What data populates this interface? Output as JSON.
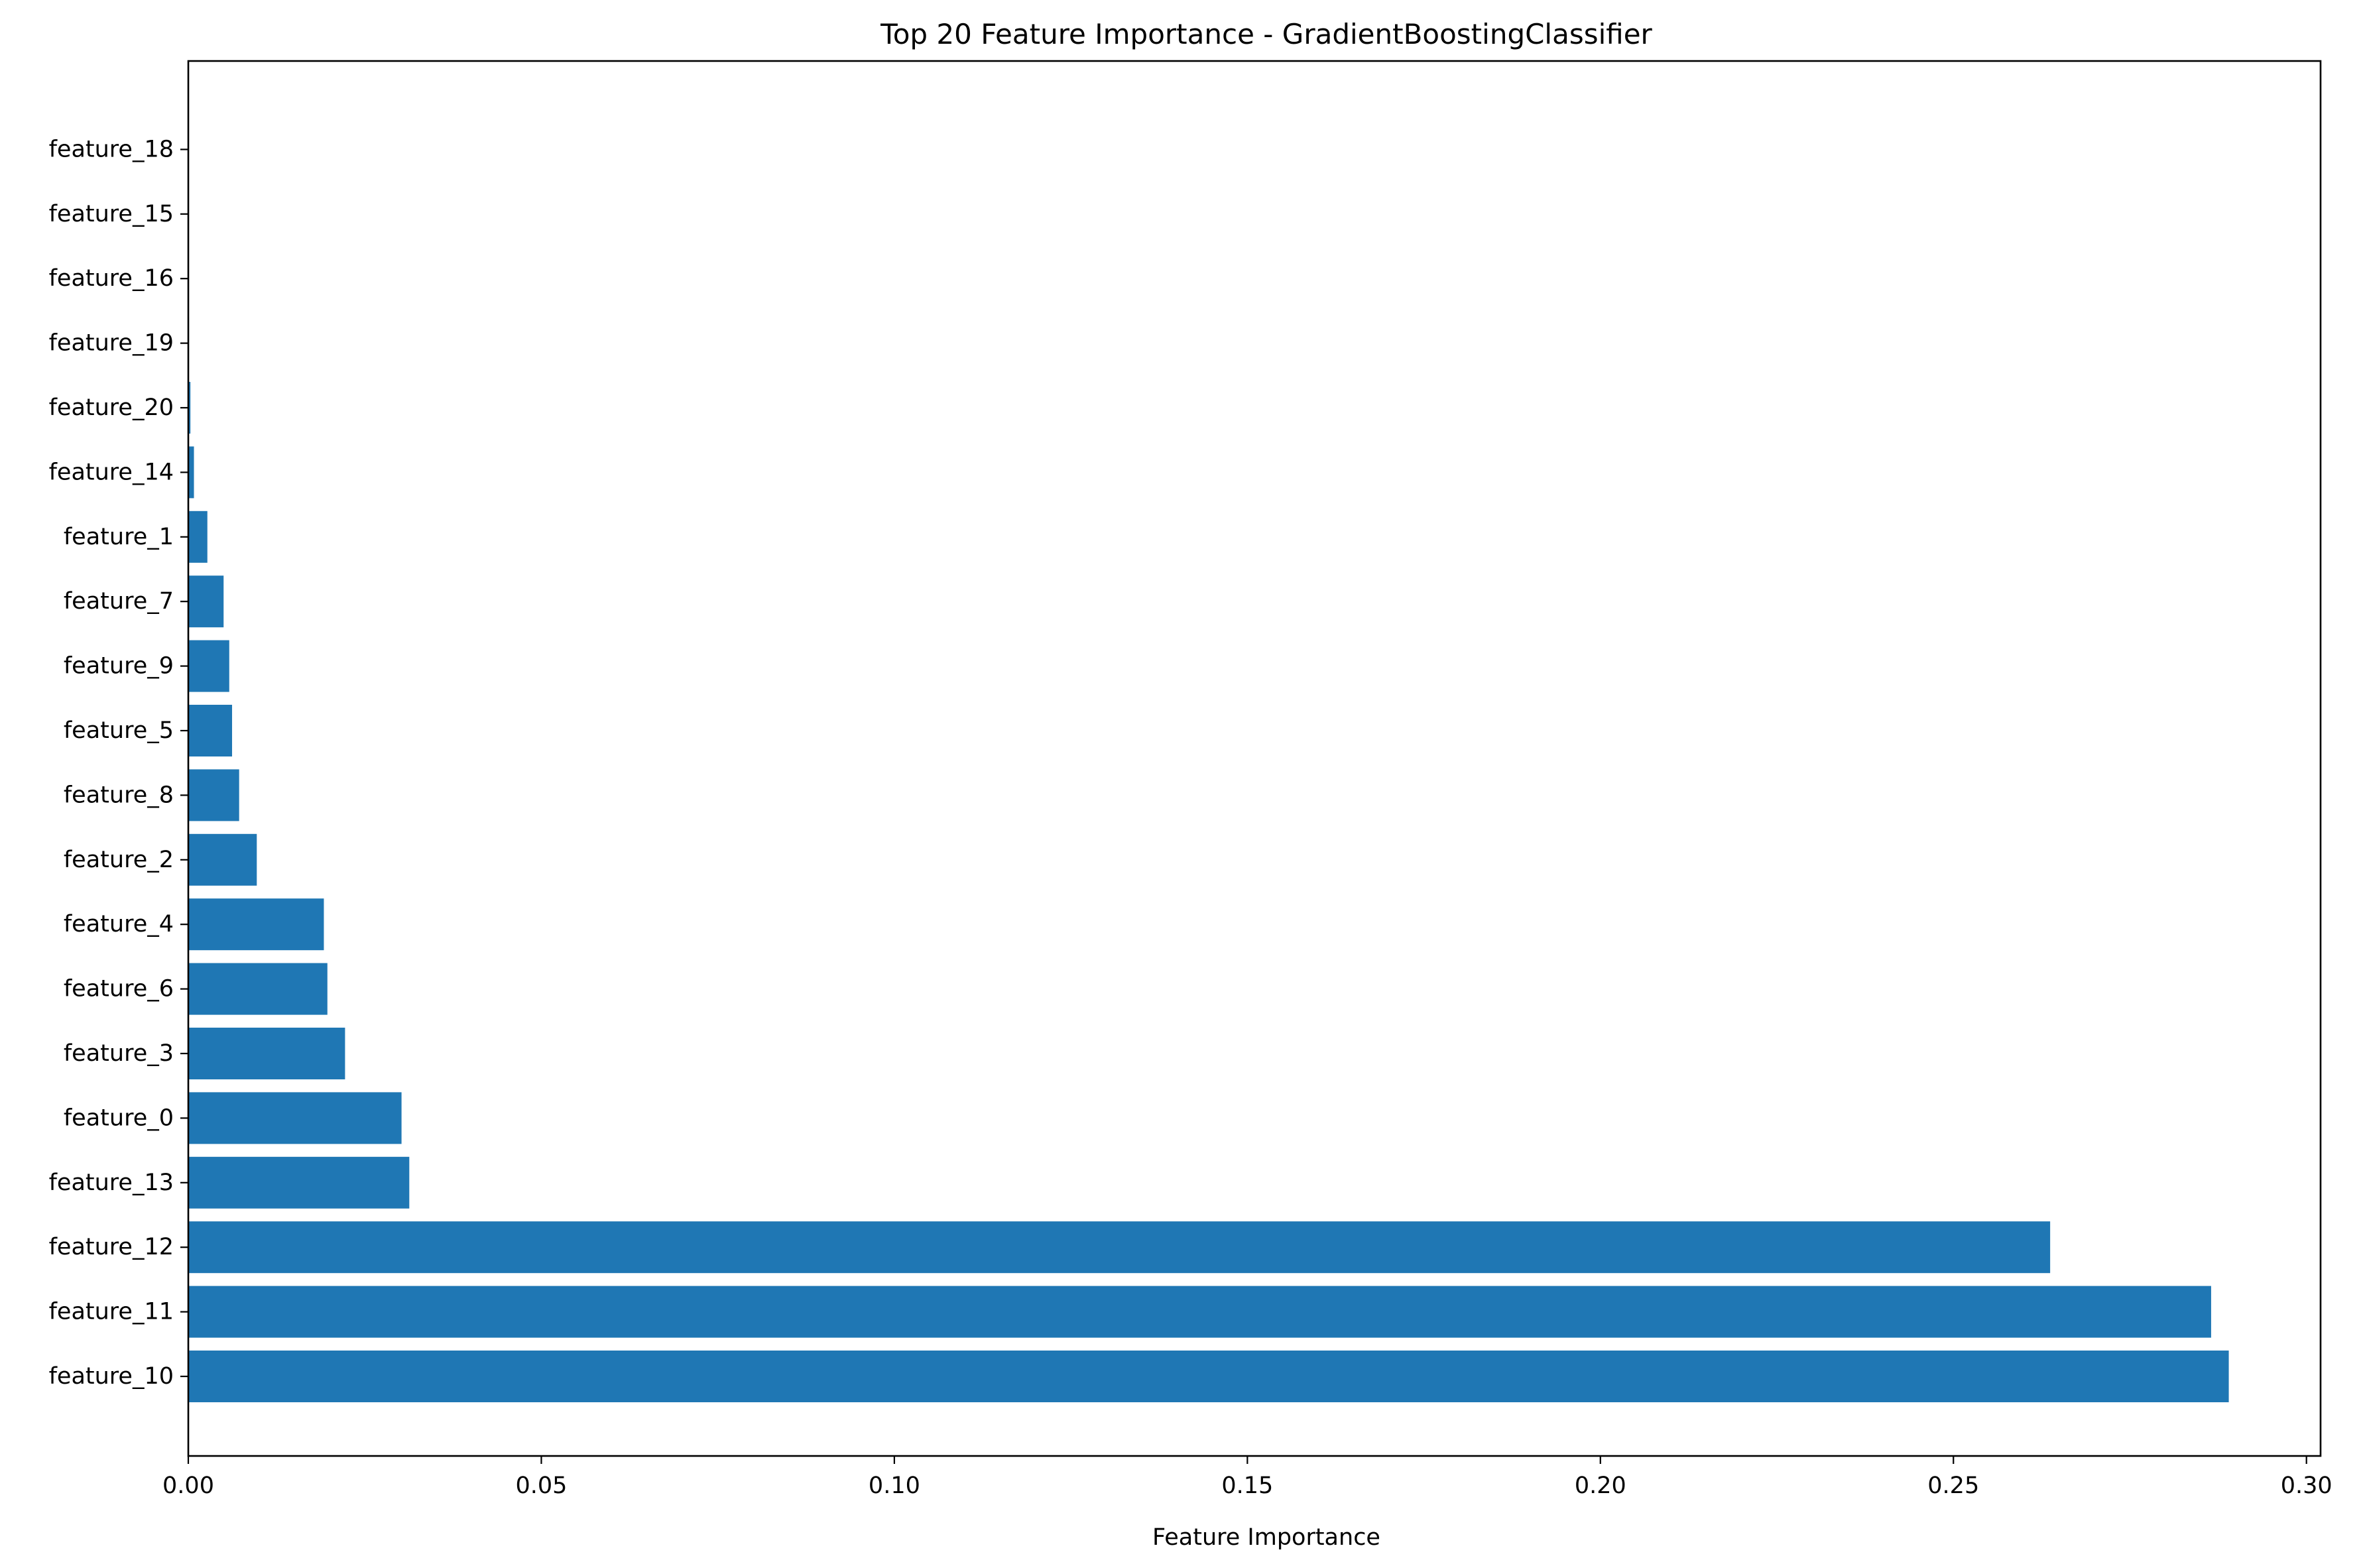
{
  "chart_data": {
    "type": "bar",
    "orientation": "horizontal",
    "title": "Top 20 Feature Importance - GradientBoostingClassifier",
    "xlabel": "Feature Importance",
    "ylabel": "",
    "xlim": [
      0.0,
      0.302
    ],
    "xticks": [
      "0.00",
      "0.05",
      "0.10",
      "0.15",
      "0.20",
      "0.25",
      "0.30"
    ],
    "xtick_values": [
      0.0,
      0.05,
      0.1,
      0.15,
      0.2,
      0.25,
      0.3
    ],
    "grid": false,
    "bar_color": "#1f77b4",
    "categories": [
      "feature_10",
      "feature_11",
      "feature_12",
      "feature_13",
      "feature_0",
      "feature_3",
      "feature_6",
      "feature_4",
      "feature_2",
      "feature_8",
      "feature_5",
      "feature_9",
      "feature_7",
      "feature_1",
      "feature_14",
      "feature_20",
      "feature_19",
      "feature_16",
      "feature_15",
      "feature_18"
    ],
    "values": [
      0.289,
      0.2865,
      0.2637,
      0.0313,
      0.0302,
      0.0222,
      0.0197,
      0.0192,
      0.0097,
      0.0072,
      0.0062,
      0.0058,
      0.005,
      0.0027,
      0.0008,
      0.0003,
      0.0001,
      0.0,
      0.0,
      0.0
    ]
  }
}
